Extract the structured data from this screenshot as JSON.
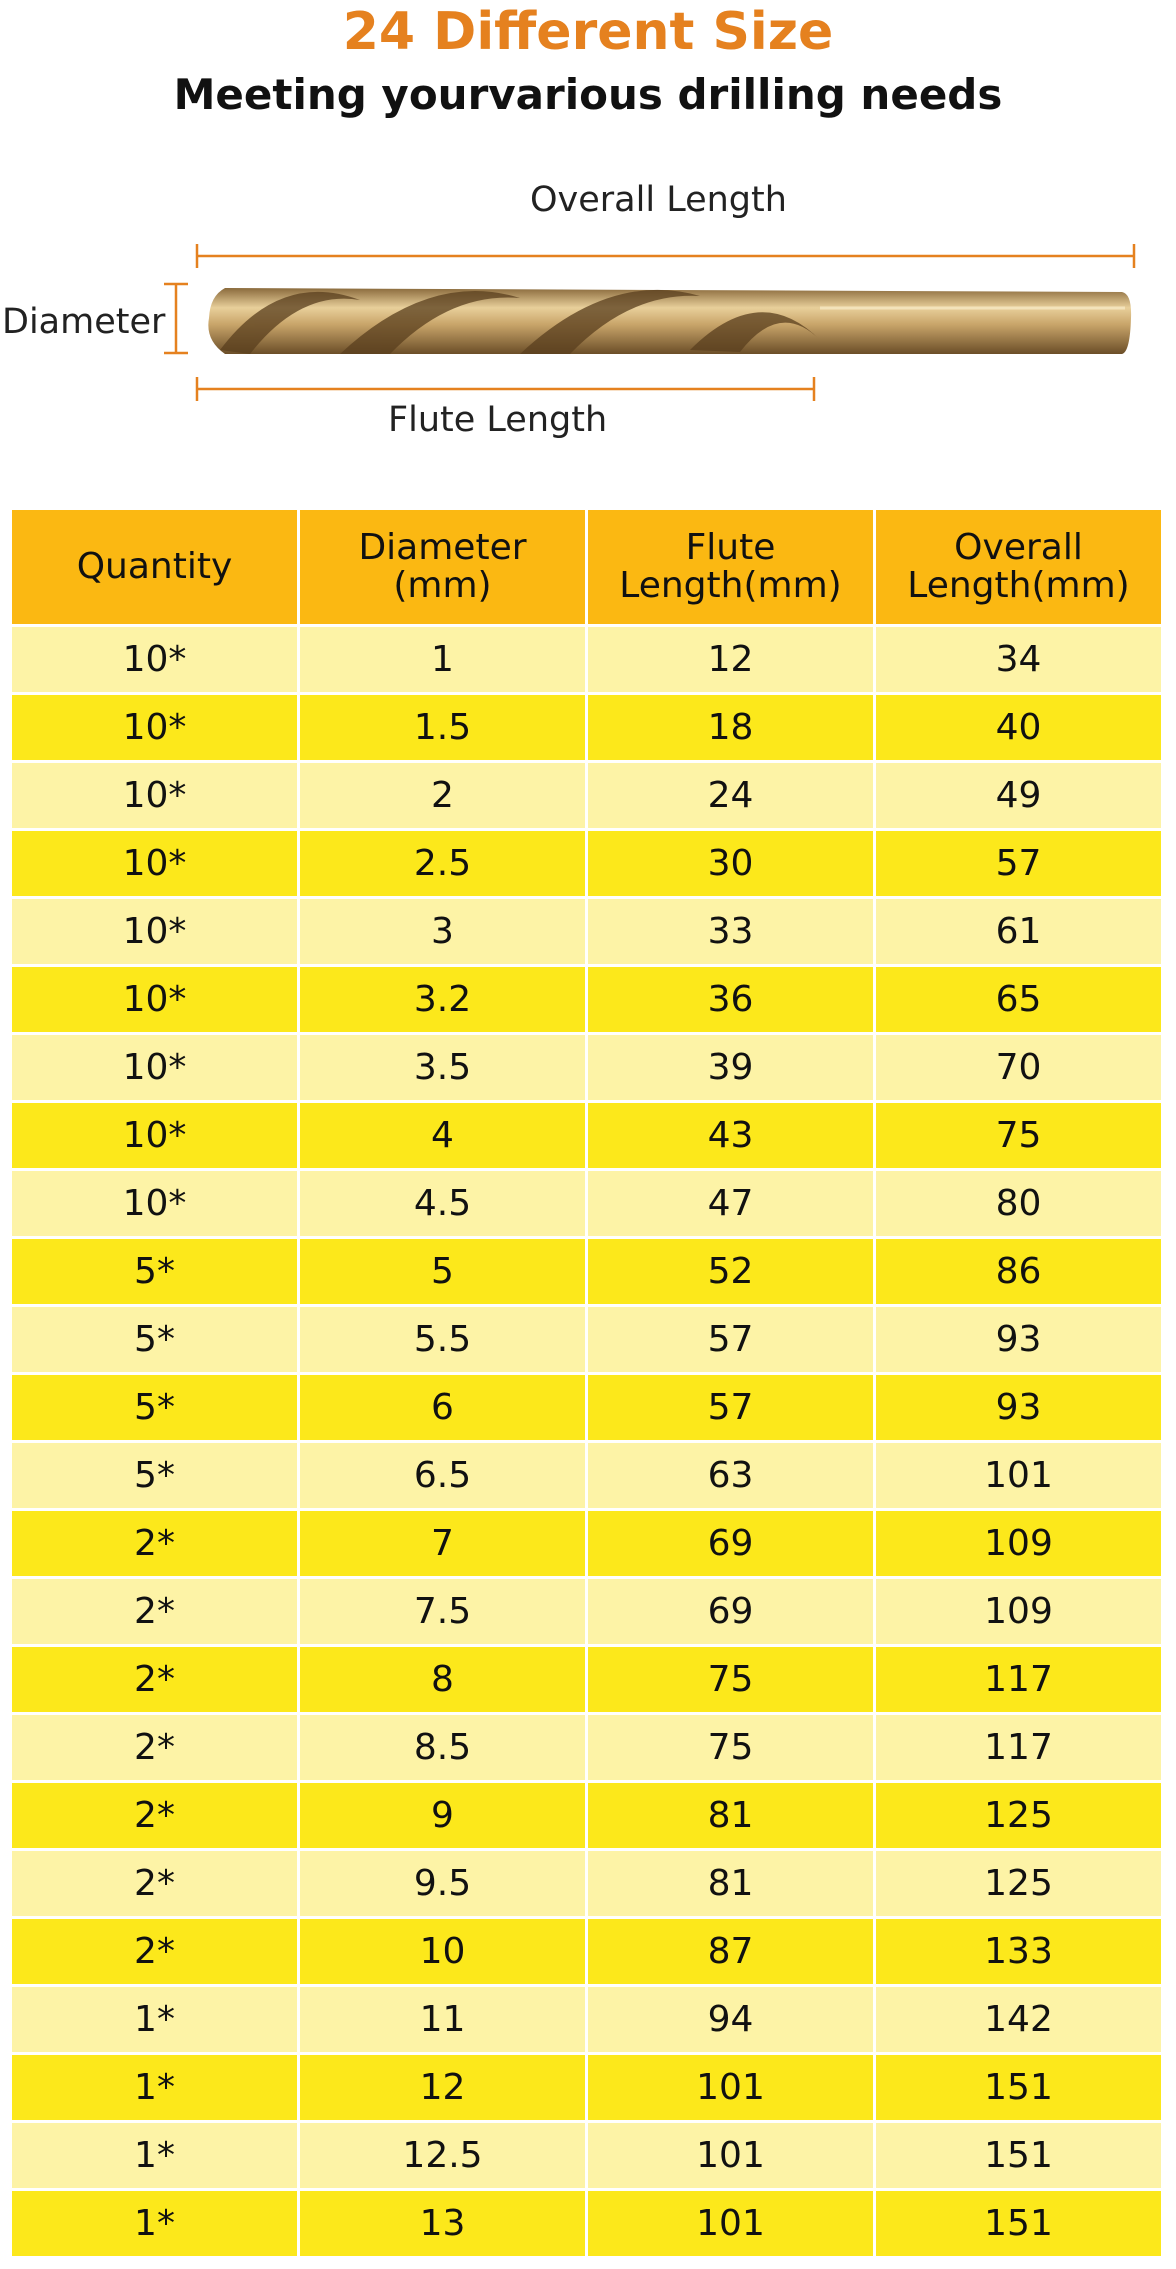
{
  "header": {
    "title": "24 Different Size",
    "subtitle": "Meeting yourvarious drilling needs"
  },
  "diagram": {
    "overall_length": "Overall Length",
    "diameter": "Diameter",
    "flute_length": "Flute Length"
  },
  "table": {
    "columns": [
      "Quantity",
      "Diameter\n(mm)",
      "Flute\nLength(mm)",
      "Overall\nLength(mm)"
    ],
    "rows": [
      [
        "10*",
        "1",
        "12",
        "34"
      ],
      [
        "10*",
        "1.5",
        "18",
        "40"
      ],
      [
        "10*",
        "2",
        "24",
        "49"
      ],
      [
        "10*",
        "2.5",
        "30",
        "57"
      ],
      [
        "10*",
        "3",
        "33",
        "61"
      ],
      [
        "10*",
        "3.2",
        "36",
        "65"
      ],
      [
        "10*",
        "3.5",
        "39",
        "70"
      ],
      [
        "10*",
        "4",
        "43",
        "75"
      ],
      [
        "10*",
        "4.5",
        "47",
        "80"
      ],
      [
        "5*",
        "5",
        "52",
        "86"
      ],
      [
        "5*",
        "5.5",
        "57",
        "93"
      ],
      [
        "5*",
        "6",
        "57",
        "93"
      ],
      [
        "5*",
        "6.5",
        "63",
        "101"
      ],
      [
        "2*",
        "7",
        "69",
        "109"
      ],
      [
        "2*",
        "7.5",
        "69",
        "109"
      ],
      [
        "2*",
        "8",
        "75",
        "117"
      ],
      [
        "2*",
        "8.5",
        "75",
        "117"
      ],
      [
        "2*",
        "9",
        "81",
        "125"
      ],
      [
        "2*",
        "9.5",
        "81",
        "125"
      ],
      [
        "2*",
        "10",
        "87",
        "133"
      ],
      [
        "1*",
        "11",
        "94",
        "142"
      ],
      [
        "1*",
        "12",
        "101",
        "151"
      ],
      [
        "1*",
        "12.5",
        "101",
        "151"
      ],
      [
        "1*",
        "13",
        "101",
        "151"
      ]
    ]
  }
}
